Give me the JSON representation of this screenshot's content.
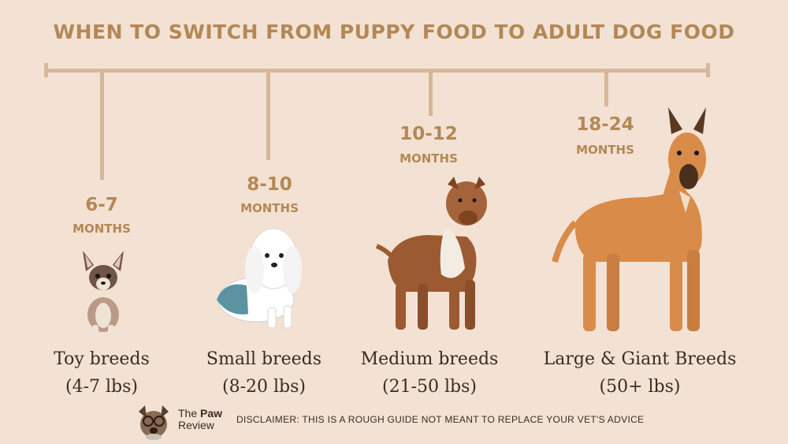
{
  "title": "WHEN TO SWITCH FROM PUPPY FOOD TO ADULT DOG FOOD",
  "stages": [
    {
      "range": "6-7",
      "unit": "MONTHS",
      "breed": "Toy breeds",
      "weight": "(4-7 lbs)"
    },
    {
      "range": "8-10",
      "unit": "MONTHS",
      "breed": "Small breeds",
      "weight": "(8-20 lbs)"
    },
    {
      "range": "10-12",
      "unit": "MONTHS",
      "breed": "Medium breeds",
      "weight": "(21-50 lbs)"
    },
    {
      "range": "18-24",
      "unit": "MONTHS",
      "breed": "Large & Giant Breeds",
      "weight": "(50+ lbs)"
    }
  ],
  "footer": {
    "brand_line1_a": "The ",
    "brand_line1_b": "Paw",
    "brand_line2": "Review",
    "disclaimer": "DISCLAIMER: THIS IS A ROUGH GUIDE NOT MEANT TO REPLACE YOUR VET'S ADVICE"
  },
  "colors": {
    "background": "#f3e2d3",
    "accent": "#b38856",
    "line": "#d7b79a",
    "text": "#3a2c22"
  },
  "icons": [
    "chihuahua-illustration",
    "maltese-illustration",
    "pitbull-illustration",
    "great-dane-illustration",
    "paw-review-logo-icon"
  ]
}
